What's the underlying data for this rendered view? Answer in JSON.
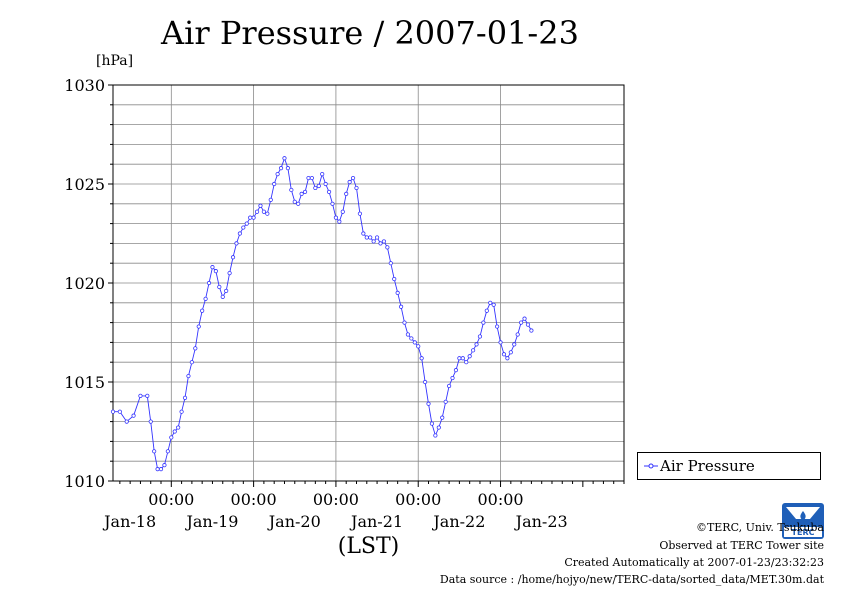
{
  "chart_data": {
    "type": "line",
    "title": "Air Pressure / 2007-01-23",
    "ylabel": "[hPa]",
    "xlabel": "(LST)",
    "ylim": [
      1010,
      1030
    ],
    "yticks": [
      1010,
      1015,
      1020,
      1025,
      1030
    ],
    "ytick_labels": [
      "1010",
      "1015",
      "1020",
      "1025",
      "1030"
    ],
    "xlim": [
      -17,
      132
    ],
    "x_unit": "hours after 2007-01-18 00:00 LST",
    "time_ticks": [
      {
        "x": 0,
        "label": "00:00"
      },
      {
        "x": 24,
        "label": "00:00"
      },
      {
        "x": 48,
        "label": "00:00"
      },
      {
        "x": 72,
        "label": "00:00"
      },
      {
        "x": 96,
        "label": "00:00"
      }
    ],
    "date_labels": [
      {
        "x": -12,
        "label": "Jan-18"
      },
      {
        "x": 12,
        "label": "Jan-19"
      },
      {
        "x": 36,
        "label": "Jan-20"
      },
      {
        "x": 60,
        "label": "Jan-21"
      },
      {
        "x": 84,
        "label": "Jan-22"
      },
      {
        "x": 108,
        "label": "Jan-23"
      }
    ],
    "grid": true,
    "legend_position": "right",
    "series": [
      {
        "name": "Air Pressure",
        "color": "#3333ff",
        "points": [
          [
            -17,
            1013.5
          ],
          [
            -15,
            1013.5
          ],
          [
            -13,
            1013.0
          ],
          [
            -11,
            1013.3
          ],
          [
            -9,
            1014.3
          ],
          [
            -7,
            1014.3
          ],
          [
            -6,
            1013.0
          ],
          [
            -5,
            1011.5
          ],
          [
            -4,
            1010.6
          ],
          [
            -3,
            1010.6
          ],
          [
            -2,
            1010.8
          ],
          [
            -1,
            1011.5
          ],
          [
            0,
            1012.2
          ],
          [
            1,
            1012.5
          ],
          [
            2,
            1012.7
          ],
          [
            3,
            1013.5
          ],
          [
            4,
            1014.2
          ],
          [
            5,
            1015.3
          ],
          [
            6,
            1016.0
          ],
          [
            7,
            1016.7
          ],
          [
            8,
            1017.8
          ],
          [
            9,
            1018.6
          ],
          [
            10,
            1019.2
          ],
          [
            11,
            1020.0
          ],
          [
            12,
            1020.8
          ],
          [
            13,
            1020.6
          ],
          [
            14,
            1019.8
          ],
          [
            15,
            1019.3
          ],
          [
            16,
            1019.6
          ],
          [
            17,
            1020.5
          ],
          [
            18,
            1021.3
          ],
          [
            19,
            1022.0
          ],
          [
            20,
            1022.5
          ],
          [
            21,
            1022.8
          ],
          [
            22,
            1023.0
          ],
          [
            23,
            1023.3
          ],
          [
            24,
            1023.3
          ],
          [
            25,
            1023.6
          ],
          [
            26,
            1023.9
          ],
          [
            27,
            1023.6
          ],
          [
            28,
            1023.5
          ],
          [
            29,
            1024.2
          ],
          [
            30,
            1025.0
          ],
          [
            31,
            1025.5
          ],
          [
            32,
            1025.8
          ],
          [
            33,
            1026.3
          ],
          [
            34,
            1025.8
          ],
          [
            35,
            1024.7
          ],
          [
            36,
            1024.1
          ],
          [
            37,
            1024.0
          ],
          [
            38,
            1024.5
          ],
          [
            39,
            1024.6
          ],
          [
            40,
            1025.3
          ],
          [
            41,
            1025.3
          ],
          [
            42,
            1024.8
          ],
          [
            43,
            1024.9
          ],
          [
            44,
            1025.5
          ],
          [
            45,
            1025.0
          ],
          [
            46,
            1024.6
          ],
          [
            47,
            1024.0
          ],
          [
            48,
            1023.3
          ],
          [
            49,
            1023.1
          ],
          [
            50,
            1023.6
          ],
          [
            51,
            1024.5
          ],
          [
            52,
            1025.1
          ],
          [
            53,
            1025.3
          ],
          [
            54,
            1024.8
          ],
          [
            55,
            1023.5
          ],
          [
            56,
            1022.5
          ],
          [
            57,
            1022.3
          ],
          [
            58,
            1022.3
          ],
          [
            59,
            1022.1
          ],
          [
            60,
            1022.3
          ],
          [
            61,
            1022.0
          ],
          [
            62,
            1022.1
          ],
          [
            63,
            1021.8
          ],
          [
            64,
            1021.0
          ],
          [
            65,
            1020.2
          ],
          [
            66,
            1019.5
          ],
          [
            67,
            1018.8
          ],
          [
            68,
            1018.0
          ],
          [
            69,
            1017.4
          ],
          [
            70,
            1017.2
          ],
          [
            71,
            1017.0
          ],
          [
            72,
            1016.8
          ],
          [
            73,
            1016.2
          ],
          [
            74,
            1015.0
          ],
          [
            75,
            1013.9
          ],
          [
            76,
            1012.9
          ],
          [
            77,
            1012.3
          ],
          [
            78,
            1012.7
          ],
          [
            79,
            1013.2
          ],
          [
            80,
            1014.0
          ],
          [
            81,
            1014.8
          ],
          [
            82,
            1015.2
          ],
          [
            83,
            1015.6
          ],
          [
            84,
            1016.2
          ],
          [
            85,
            1016.2
          ],
          [
            86,
            1016.0
          ],
          [
            87,
            1016.3
          ],
          [
            88,
            1016.6
          ],
          [
            89,
            1016.9
          ],
          [
            90,
            1017.3
          ],
          [
            91,
            1018.0
          ],
          [
            92,
            1018.6
          ],
          [
            93,
            1019.0
          ],
          [
            94,
            1018.9
          ],
          [
            95,
            1017.8
          ],
          [
            96,
            1017.0
          ],
          [
            97,
            1016.4
          ],
          [
            98,
            1016.2
          ],
          [
            99,
            1016.5
          ],
          [
            100,
            1016.9
          ],
          [
            101,
            1017.4
          ],
          [
            102,
            1018.0
          ],
          [
            103,
            1018.2
          ],
          [
            104,
            1017.9
          ],
          [
            105,
            1017.6
          ]
        ]
      }
    ]
  },
  "legend": {
    "label": "Air Pressure"
  },
  "footer": {
    "copyright": "©TERC, Univ. Tsukuba",
    "observed": "Observed at TERC Tower site",
    "created": "Created Automatically at 2007-01-23/23:32:23",
    "source": "Data source : /home/hojyo/new/TERC-data/sorted_data/MET.30m.dat"
  },
  "logo": {
    "text": "TERC"
  }
}
